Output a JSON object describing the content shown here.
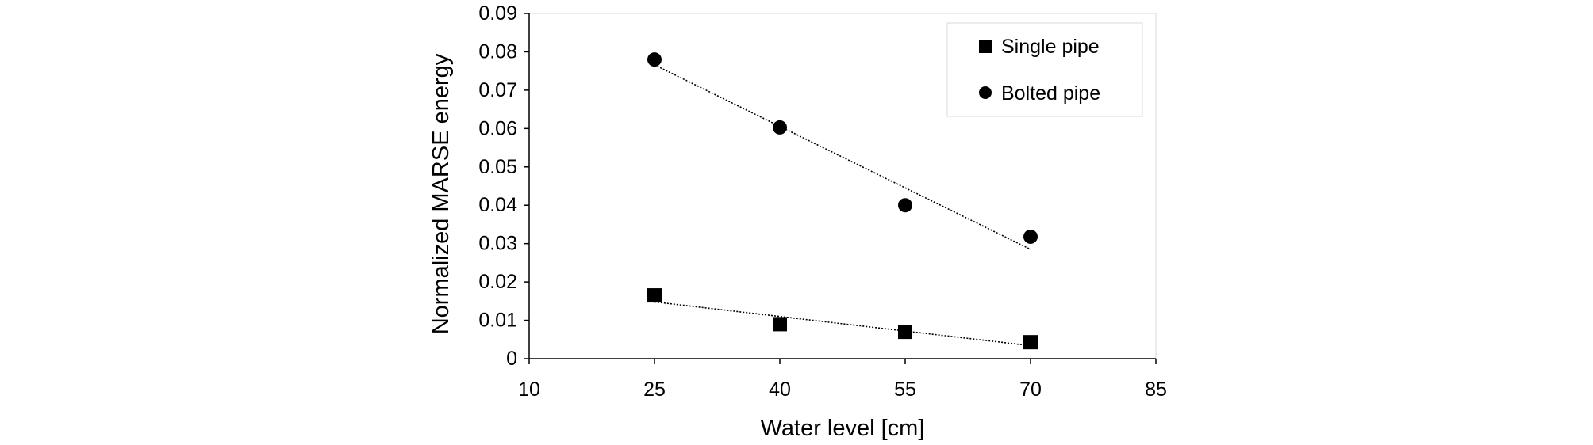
{
  "chart_data": {
    "type": "scatter",
    "xlabel": "Water level [cm]",
    "ylabel": "Normalized MARSE energy",
    "xlim": [
      10,
      85
    ],
    "ylim": [
      0,
      0.09
    ],
    "xticks": [
      10,
      25,
      40,
      55,
      70,
      85
    ],
    "yticks": [
      0,
      0.01,
      0.02,
      0.03,
      0.04,
      0.05,
      0.06,
      0.07,
      0.08,
      0.09
    ],
    "ytick_labels": [
      "0",
      "0.01",
      "0.02",
      "0.03",
      "0.04",
      "0.05",
      "0.06",
      "0.07",
      "0.08",
      "0.09"
    ],
    "legend_position": "top-right",
    "grid": false,
    "series": [
      {
        "name": "Single pipe",
        "marker": "square",
        "x": [
          25,
          40,
          55,
          70
        ],
        "y": [
          0.0165,
          0.009,
          0.007,
          0.0043
        ],
        "trendline": {
          "type": "linear",
          "style": "dotted",
          "from": [
            25,
            0.0148
          ],
          "to": [
            70,
            0.0034
          ]
        },
        "color": "#000000"
      },
      {
        "name": "Bolted pipe",
        "marker": "circle",
        "x": [
          25,
          40,
          55,
          70
        ],
        "y": [
          0.078,
          0.0603,
          0.04,
          0.0318
        ],
        "trendline": {
          "type": "linear",
          "style": "dotted",
          "from": [
            25,
            0.0766
          ],
          "to": [
            70,
            0.0285
          ]
        },
        "color": "#000000"
      }
    ]
  }
}
